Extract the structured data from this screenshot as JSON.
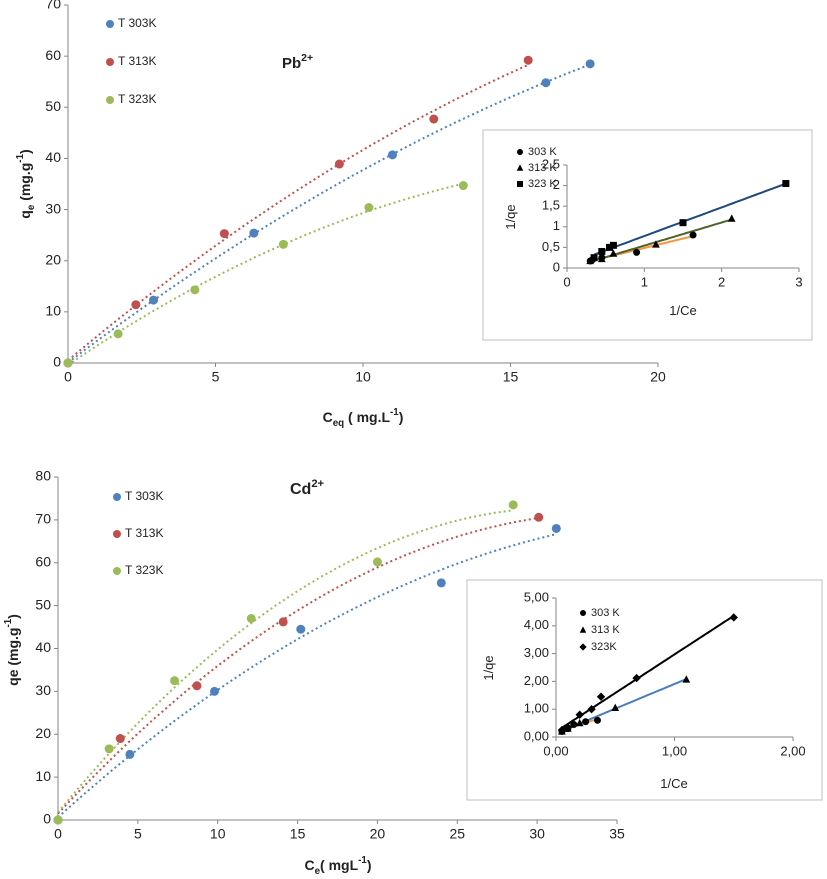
{
  "chart_data": [
    {
      "type": "scatter",
      "trendline": "polynomial",
      "legend": "upper left",
      "annotation": [
        {
          "text": "Pb"
        },
        {
          "text": "2+",
          "sup": true
        }
      ],
      "xlabel": [
        {
          "text": "C"
        },
        {
          "text": "eq",
          "sub": true
        },
        {
          "text": " ( mg.L"
        },
        {
          "text": "-1",
          "sup": true
        },
        {
          "text": ")"
        }
      ],
      "ylabel": [
        {
          "text": "q"
        },
        {
          "text": "e",
          "sub": true
        },
        {
          "text": " (mg.g"
        },
        {
          "text": "-1",
          "sup": true
        },
        {
          "text": ")"
        }
      ],
      "xlim": [
        0,
        20
      ],
      "xticks": [
        0,
        5,
        10,
        15,
        20
      ],
      "ylim": [
        0,
        70
      ],
      "yticks": [
        0,
        10,
        20,
        30,
        40,
        50,
        60,
        70
      ],
      "series": [
        {
          "name": "T 303K",
          "color": "#4f81bd",
          "marker": "circle",
          "x": [
            0,
            2.9,
            6.3,
            11,
            16.2,
            17.7
          ],
          "values": [
            0,
            12.3,
            25.4,
            40.7,
            54.8,
            58.5
          ]
        },
        {
          "name": "T 313K",
          "color": "#c0504d",
          "marker": "circle",
          "x": [
            0,
            2.3,
            5.3,
            9.2,
            12.4,
            15.6
          ],
          "values": [
            0,
            11.4,
            25.3,
            38.9,
            47.7,
            59.2
          ]
        },
        {
          "name": "T 323K",
          "color": "#9bbb59",
          "marker": "circle",
          "x": [
            0,
            1.7,
            4.3,
            7.3,
            10.2,
            13.4
          ],
          "values": [
            0,
            5.7,
            14.3,
            23.2,
            30.4,
            34.7
          ]
        }
      ]
    },
    {
      "type": "scatter",
      "trendline": "linear",
      "legend": "upper left",
      "xlabel": [
        {
          "text": "1/Ce"
        }
      ],
      "ylabel": [
        {
          "text": "1/qe"
        }
      ],
      "xlim": [
        0,
        3
      ],
      "xticks": [
        0,
        1,
        2,
        3
      ],
      "ylim": [
        0,
        2.5
      ],
      "yticks": [
        0,
        {
          "value": 0.5,
          "label": "0,5"
        },
        1,
        {
          "value": 1.5,
          "label": "1,5"
        },
        2,
        {
          "value": 2.5,
          "label": "2,5"
        }
      ],
      "series": [
        {
          "name": "303 K",
          "color": "#000000",
          "trend_color": "#f79646",
          "marker": "circle",
          "x": [
            0.3,
            0.33,
            0.45,
            0.9,
            1.63
          ],
          "values": [
            0.17,
            0.2,
            0.25,
            0.38,
            0.8
          ]
        },
        {
          "name": "313 K",
          "color": "#000000",
          "trend_color": "#4f6228",
          "marker": "triangle",
          "x": [
            0.3,
            0.45,
            0.6,
            1.15,
            2.13
          ],
          "values": [
            0.17,
            0.22,
            0.35,
            0.57,
            1.2
          ]
        },
        {
          "name": "323 K",
          "color": "#000000",
          "trend_color": "#1f497d",
          "marker": "square",
          "x": [
            0.35,
            0.45,
            0.55,
            0.6,
            1.5,
            2.83
          ],
          "values": [
            0.25,
            0.4,
            0.5,
            0.55,
            1.1,
            2.05
          ]
        }
      ]
    },
    {
      "type": "scatter",
      "trendline": "polynomial",
      "legend": "upper left",
      "annotation": [
        {
          "text": "Cd"
        },
        {
          "text": "2+",
          "sup": true
        }
      ],
      "xlabel": [
        {
          "text": "C"
        },
        {
          "text": "e",
          "sub": true
        },
        {
          "text": "( mgL"
        },
        {
          "text": "-1",
          "sup": true
        },
        {
          "text": ")"
        }
      ],
      "ylabel": [
        {
          "text": "qe (mg.g"
        },
        {
          "text": "-1",
          "sup": true
        },
        {
          "text": ")"
        }
      ],
      "xlim": [
        0,
        35
      ],
      "xticks": [
        0,
        5,
        10,
        15,
        20,
        25,
        30,
        35
      ],
      "ylim": [
        0,
        80
      ],
      "yticks": [
        0,
        10,
        20,
        30,
        40,
        50,
        60,
        70,
        80
      ],
      "series": [
        {
          "name": "T 303K",
          "color": "#4f81bd",
          "marker": "circle",
          "x": [
            0,
            4.5,
            9.8,
            15.2,
            24,
            31.2
          ],
          "values": [
            0,
            15.3,
            30,
            44.5,
            55.3,
            68
          ]
        },
        {
          "name": "T 313K",
          "color": "#c0504d",
          "marker": "circle",
          "x": [
            0,
            3.9,
            8.7,
            14.1,
            30.1
          ],
          "values": [
            0,
            19,
            31.3,
            46.2,
            70.6
          ]
        },
        {
          "name": "T 323K",
          "color": "#9bbb59",
          "marker": "circle",
          "x": [
            0,
            3.2,
            7.3,
            12.1,
            20,
            28.5
          ],
          "values": [
            0,
            16.6,
            32.5,
            47,
            60.2,
            73.5
          ]
        }
      ]
    },
    {
      "type": "scatter",
      "trendline": "linear",
      "legend": "upper left",
      "xlabel": [
        {
          "text": "1/Ce"
        }
      ],
      "ylabel": [
        {
          "text": "1/qe"
        }
      ],
      "xlim": [
        0,
        2
      ],
      "xticks": [
        {
          "value": 0,
          "label": "0,00"
        },
        {
          "value": 1,
          "label": "1,00"
        },
        {
          "value": 2,
          "label": "2,00"
        }
      ],
      "ylim": [
        0,
        5
      ],
      "yticks": [
        {
          "value": 0,
          "label": "0,00"
        },
        {
          "value": 1,
          "label": "1,00"
        },
        {
          "value": 2,
          "label": "2,00"
        },
        {
          "value": 3,
          "label": "3,00"
        },
        {
          "value": 4,
          "label": "4,00"
        },
        {
          "value": 5,
          "label": "5,00"
        }
      ],
      "series": [
        {
          "name": "303 K",
          "color": "#000000",
          "trend_color": "#f79646",
          "marker": "circle",
          "x": [
            0.05,
            0.1,
            0.15,
            0.25,
            0.35
          ],
          "values": [
            0.2,
            0.3,
            0.45,
            0.55,
            0.6
          ]
        },
        {
          "name": "313 K",
          "color": "#000000",
          "trend_color": "#4a7ebb",
          "marker": "triangle",
          "x": [
            0.05,
            0.1,
            0.2,
            0.5,
            1.1
          ],
          "values": [
            0.2,
            0.3,
            0.5,
            1.05,
            2.07
          ]
        },
        {
          "name": "323K",
          "color": "#000000",
          "trend_color": "#000000",
          "marker": "diamond",
          "x": [
            0.05,
            0.1,
            0.2,
            0.3,
            0.38,
            0.68,
            1.5
          ],
          "values": [
            0.25,
            0.35,
            0.8,
            1.0,
            1.45,
            2.12,
            4.3
          ]
        }
      ]
    }
  ]
}
